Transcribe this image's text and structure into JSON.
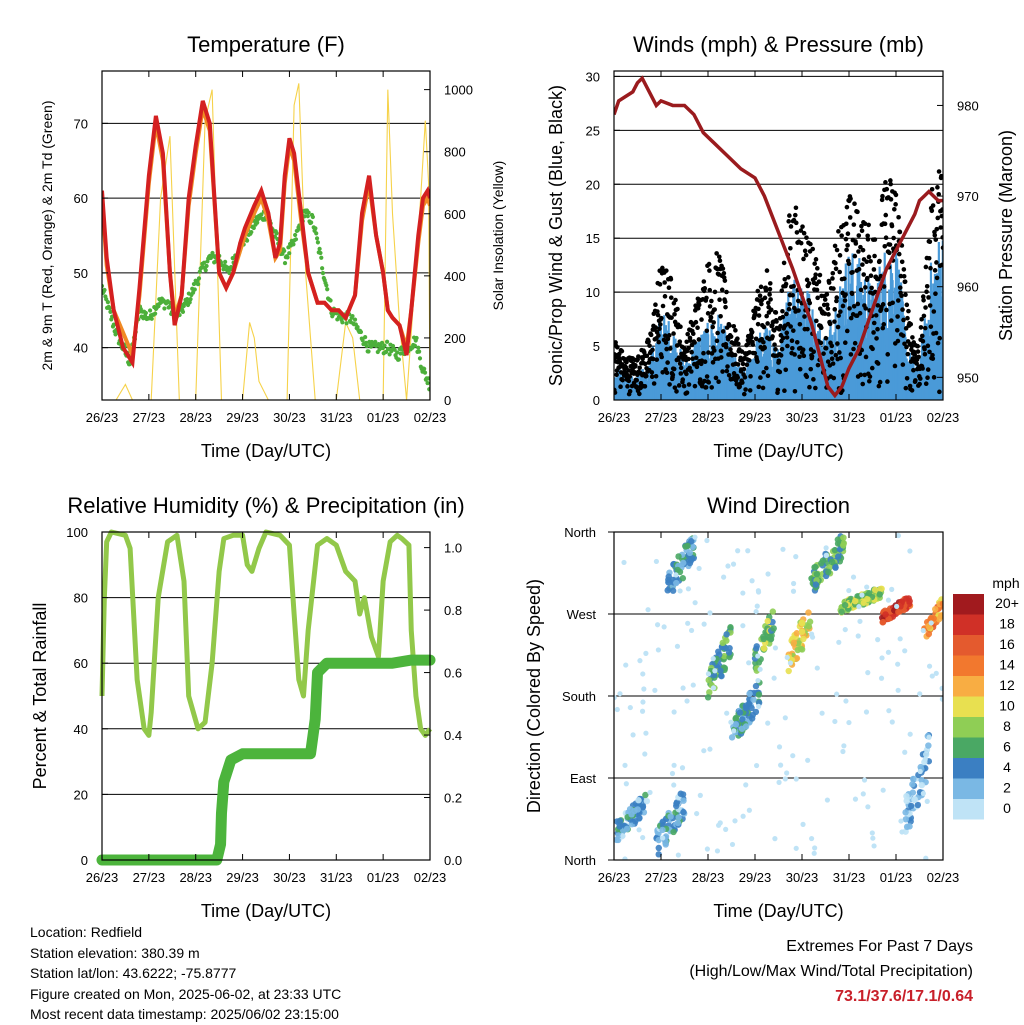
{
  "colors": {
    "temp_red": "#d42020",
    "temp_orange": "#f08a24",
    "dew_green": "#4caf3a",
    "solar_yellow": "#f6d24a",
    "wind_blue": "#4a9ad8",
    "gust_black": "#000000",
    "pressure_maroon": "#9a1b1e",
    "rh_lightgreen": "#92c84a",
    "precip_green": "#4cb43c"
  },
  "footer": {
    "location": "Location: Redfield",
    "elevation": "Station elevation: 380.39 m",
    "latlon": "Station lat/lon: 43.6222; -75.8777",
    "created": "Figure created on Mon, 2025-06-02, at 23:33 UTC",
    "recent": "Most recent data timestamp: 2025/06/02 23:15:00"
  },
  "extremes": {
    "title": "Extremes For Past 7 Days",
    "subtitle": "(High/Low/Max Wind/Total Precipitation)",
    "values": "73.1/37.6/17.1/0.64"
  },
  "chart_data": [
    {
      "type": "line",
      "title": "Temperature (F)",
      "xlabel": "Time (Day/UTC)",
      "ylabel": "2m & 9m T (Red, Orange) & 2m Td (Green)",
      "y2label": "Solar Insolation (Yellow)",
      "x_ticks": [
        "26/23",
        "27/23",
        "28/23",
        "29/23",
        "30/23",
        "31/23",
        "01/23",
        "02/23"
      ],
      "ylim": [
        33,
        77
      ],
      "y_ticks": [
        40,
        50,
        60,
        70
      ],
      "y2lim": [
        0,
        1060
      ],
      "y2_ticks": [
        0,
        200,
        400,
        600,
        800,
        1000
      ],
      "grid": "horizontal",
      "series": [
        {
          "name": "2m T",
          "axis": "left",
          "x": [
            0,
            0.1,
            0.25,
            0.45,
            0.65,
            0.8,
            1.0,
            1.15,
            1.3,
            1.45,
            1.55,
            1.7,
            1.85,
            2.0,
            2.15,
            2.3,
            2.5,
            2.65,
            2.8,
            2.95,
            3.05,
            3.25,
            3.4,
            3.55,
            3.7,
            3.8,
            3.9,
            4.0,
            4.1,
            4.25,
            4.4,
            4.6,
            4.75,
            4.9,
            5.05,
            5.2,
            5.4,
            5.55,
            5.7,
            5.85,
            6.0,
            6.1,
            6.2,
            6.35,
            6.5,
            6.6,
            6.75,
            6.85,
            6.95,
            7.0
          ],
          "y": [
            61,
            52,
            45,
            40,
            38,
            48,
            63,
            71,
            66,
            50,
            43,
            47,
            60,
            67,
            73,
            70,
            50,
            48,
            50,
            54,
            56,
            59,
            61,
            58,
            52,
            54,
            63,
            68,
            66,
            58,
            50,
            46,
            46,
            45,
            45,
            44,
            47,
            58,
            63,
            55,
            50,
            45,
            44,
            43,
            39,
            45,
            55,
            60,
            61,
            60
          ]
        },
        {
          "name": "9m T",
          "axis": "left",
          "x": [
            0,
            0.1,
            0.25,
            0.45,
            0.65,
            0.8,
            1.0,
            1.15,
            1.3,
            1.45,
            1.55,
            1.7,
            1.85,
            2.0,
            2.15,
            2.3,
            2.5,
            2.65,
            2.8,
            2.95,
            3.05,
            3.25,
            3.4,
            3.55,
            3.7,
            3.8,
            3.9,
            4.0,
            4.1,
            4.25,
            4.4,
            4.6,
            4.75,
            4.9,
            5.05,
            5.2,
            5.4,
            5.55,
            5.7,
            5.85,
            6.0,
            6.1,
            6.2,
            6.35,
            6.5,
            6.6,
            6.75,
            6.85,
            6.95,
            7.0
          ],
          "y": [
            60,
            51,
            45,
            42,
            39,
            47,
            62,
            70,
            65,
            50,
            44,
            47,
            59,
            66,
            72,
            69,
            50,
            48,
            50,
            53,
            55,
            58,
            60,
            57,
            52,
            53,
            62,
            67,
            65,
            57,
            50,
            46,
            46,
            45,
            45,
            44,
            47,
            57,
            62,
            55,
            50,
            45,
            44,
            43,
            40,
            45,
            54,
            59,
            60,
            59
          ]
        },
        {
          "name": "2m Td",
          "axis": "left",
          "x": [
            0,
            0.15,
            0.3,
            0.45,
            0.6,
            0.8,
            1.0,
            1.2,
            1.4,
            1.55,
            1.7,
            1.9,
            2.1,
            2.3,
            2.5,
            2.7,
            2.9,
            3.1,
            3.3,
            3.5,
            3.7,
            3.9,
            4.1,
            4.3,
            4.5,
            4.7,
            4.9,
            5.1,
            5.3,
            5.5,
            5.7,
            5.9,
            6.1,
            6.3,
            6.5,
            6.7,
            6.85,
            7.0
          ],
          "y": [
            48,
            45,
            42,
            40,
            38,
            45,
            44,
            46,
            46,
            44,
            45,
            47,
            50,
            52,
            52,
            50,
            53,
            55,
            57,
            58,
            55,
            52,
            54,
            58,
            57,
            51,
            45,
            44,
            44,
            42,
            40,
            40,
            40,
            39,
            40,
            41,
            37,
            35
          ]
        },
        {
          "name": "Solar Insolation",
          "axis": "right",
          "x": [
            0,
            0.1,
            0.3,
            0.5,
            0.65,
            1.05,
            1.25,
            1.45,
            1.65,
            2.0,
            2.2,
            2.35,
            2.55,
            3.0,
            3.15,
            3.25,
            3.35,
            3.55,
            3.95,
            4.1,
            4.2,
            4.35,
            4.55,
            5.0,
            5.2,
            5.35,
            5.5,
            6.0,
            6.1,
            6.2,
            6.35,
            6.5,
            6.8,
            6.9,
            6.97,
            7.0
          ],
          "y": [
            0,
            0,
            0,
            50,
            0,
            0,
            650,
            850,
            0,
            0,
            900,
            1000,
            0,
            0,
            250,
            200,
            60,
            0,
            0,
            950,
            1020,
            400,
            0,
            0,
            250,
            200,
            0,
            0,
            1000,
            600,
            250,
            0,
            650,
            900,
            700,
            0
          ]
        }
      ]
    },
    {
      "type": "scatter",
      "title": "Winds (mph) & Pressure (mb)",
      "xlabel": "Time (Day/UTC)",
      "ylabel": "Sonic/Prop Wind & Gust (Blue, Black)",
      "y2label": "Station Pressure (Maroon)",
      "x_ticks": [
        "26/23",
        "27/23",
        "28/23",
        "29/23",
        "30/23",
        "31/23",
        "01/23",
        "02/23"
      ],
      "ylim": [
        0,
        30.5
      ],
      "y_ticks": [
        0,
        5,
        10,
        15,
        20,
        25,
        30
      ],
      "y2lim": [
        947.5,
        983.8
      ],
      "y2_ticks": [
        950,
        960,
        970,
        980
      ],
      "grid": "horizontal",
      "wind_envelope": {
        "x": [
          0,
          0.25,
          0.5,
          0.75,
          1.0,
          1.25,
          1.5,
          1.75,
          2.0,
          2.25,
          2.5,
          2.75,
          3.0,
          3.25,
          3.5,
          3.75,
          4.0,
          4.25,
          4.5,
          4.75,
          5.0,
          5.25,
          5.5,
          5.75,
          6.0,
          6.25,
          6.5,
          6.75,
          7.0
        ],
        "sustained": [
          3,
          2,
          2,
          3,
          7,
          6,
          3,
          5,
          6,
          7,
          4,
          2,
          5,
          6,
          4,
          10,
          11,
          7,
          5,
          9,
          12,
          11,
          9,
          12,
          13,
          4,
          3,
          11,
          14
        ],
        "gust": [
          6,
          4,
          4,
          6,
          14,
          12,
          5,
          10,
          14,
          15,
          8,
          4,
          10,
          13,
          8,
          20,
          19,
          15,
          10,
          17,
          21,
          19,
          17,
          22,
          24,
          9,
          5,
          21,
          25
        ]
      },
      "series": [
        {
          "name": "Station Pressure",
          "axis": "right",
          "x": [
            0,
            0.1,
            0.25,
            0.4,
            0.5,
            0.6,
            0.75,
            0.9,
            1.0,
            1.25,
            1.5,
            1.7,
            1.9,
            2.1,
            2.4,
            2.7,
            3.0,
            3.2,
            3.5,
            3.8,
            4.0,
            4.2,
            4.4,
            4.55,
            4.7,
            4.85,
            5.0,
            5.2,
            5.4,
            5.6,
            5.8,
            6.0,
            6.2,
            6.4,
            6.5,
            6.6,
            6.7,
            6.8,
            6.9,
            7.0
          ],
          "y": [
            979,
            980.5,
            981,
            981.5,
            982.5,
            983,
            981.5,
            980,
            980.5,
            980,
            980,
            979,
            977,
            976,
            974.5,
            973,
            972,
            970,
            966,
            962,
            959,
            956,
            952,
            949,
            948,
            949,
            951,
            953,
            956,
            959,
            962,
            964,
            966,
            968,
            969.5,
            970,
            970.5,
            970,
            969.5,
            969.5
          ]
        }
      ]
    },
    {
      "type": "line",
      "title": "Relative Humidity (%) & Precipitation (in)",
      "xlabel": "Time (Day/UTC)",
      "ylabel": "Percent & Total Rainfall",
      "x_ticks": [
        "26/23",
        "27/23",
        "28/23",
        "29/23",
        "30/23",
        "31/23",
        "01/23",
        "02/23"
      ],
      "ylim": [
        0,
        100
      ],
      "y_ticks": [
        0,
        20,
        40,
        60,
        80,
        100
      ],
      "y2lim": [
        0,
        1.05
      ],
      "y2_ticks": [
        0.0,
        0.2,
        0.4,
        0.6,
        0.8,
        1.0
      ],
      "grid": "horizontal",
      "series": [
        {
          "name": "Relative Humidity",
          "axis": "left",
          "x": [
            0,
            0.05,
            0.1,
            0.2,
            0.5,
            0.6,
            0.75,
            0.9,
            1.0,
            1.05,
            1.2,
            1.4,
            1.6,
            1.75,
            1.85,
            2.05,
            2.2,
            2.35,
            2.5,
            2.6,
            2.8,
            3.0,
            3.1,
            3.2,
            3.35,
            3.5,
            3.8,
            4.0,
            4.1,
            4.2,
            4.3,
            4.4,
            4.6,
            4.8,
            5.0,
            5.2,
            5.4,
            5.5,
            5.6,
            5.75,
            5.9,
            6.0,
            6.15,
            6.3,
            6.4,
            6.55,
            6.6,
            6.7,
            6.8,
            6.9,
            7.0
          ],
          "y": [
            50,
            80,
            97,
            100,
            99,
            95,
            55,
            40,
            38,
            45,
            80,
            97,
            99,
            85,
            50,
            40,
            42,
            60,
            88,
            98,
            99,
            99,
            90,
            88,
            95,
            100,
            99,
            96,
            75,
            55,
            50,
            70,
            96,
            98,
            96,
            88,
            85,
            75,
            80,
            68,
            62,
            85,
            97,
            99,
            98,
            96,
            70,
            50,
            40,
            38,
            40
          ]
        },
        {
          "name": "Total Precipitation",
          "axis": "right",
          "x": [
            0,
            2.45,
            2.53,
            2.55,
            2.6,
            2.75,
            3.0,
            3.5,
            4.0,
            4.45,
            4.55,
            4.6,
            4.8,
            5.2,
            5.8,
            6.2,
            6.6,
            7.0
          ],
          "y": [
            0.0,
            0.0,
            0.05,
            0.15,
            0.25,
            0.32,
            0.34,
            0.34,
            0.34,
            0.34,
            0.45,
            0.6,
            0.63,
            0.63,
            0.63,
            0.63,
            0.64,
            0.64
          ]
        }
      ]
    },
    {
      "type": "scatter",
      "title": "Wind Direction",
      "xlabel": "Time (Day/UTC)",
      "ylabel": "Direction (Colored By Speed)",
      "x_ticks": [
        "26/23",
        "27/23",
        "28/23",
        "29/23",
        "30/23",
        "31/23",
        "01/23",
        "02/23"
      ],
      "y_ticks": [
        "North",
        "East",
        "South",
        "West",
        "North"
      ],
      "y_tick_degrees": [
        0,
        90,
        180,
        270,
        360
      ],
      "ylim": [
        0,
        360
      ],
      "grid": "horizontal",
      "colorbar": {
        "title": "mph",
        "labels": [
          "20+",
          "18",
          "16",
          "14",
          "12",
          "10",
          "8",
          "6",
          "4",
          "2",
          "0"
        ],
        "colors": [
          "#a11a1e",
          "#d03027",
          "#e45a2e",
          "#f2782e",
          "#f8ad43",
          "#e8e050",
          "#8fce55",
          "#4aa864",
          "#3b7fc2",
          "#7ab8e4",
          "#bfe3f6"
        ]
      },
      "direction_clusters": [
        {
          "x": [
            0.05,
            0.7
          ],
          "dir": [
            20,
            75
          ],
          "speed": 3
        },
        {
          "x": [
            0.9,
            1.5
          ],
          "dir": [
            0,
            80
          ],
          "speed": 3
        },
        {
          "x": [
            1.1,
            1.7
          ],
          "dir": [
            280,
            360
          ],
          "speed": 4
        },
        {
          "x": [
            2.0,
            2.5
          ],
          "dir": [
            170,
            260
          ],
          "speed": 6
        },
        {
          "x": [
            2.5,
            3.1
          ],
          "dir": [
            120,
            200
          ],
          "speed": 4
        },
        {
          "x": [
            3.0,
            3.4
          ],
          "dir": [
            200,
            280
          ],
          "speed": 7
        },
        {
          "x": [
            3.7,
            4.2
          ],
          "dir": [
            200,
            285
          ],
          "speed": 10
        },
        {
          "x": [
            4.2,
            4.9
          ],
          "dir": [
            290,
            360
          ],
          "speed": 6
        },
        {
          "x": [
            4.8,
            5.7
          ],
          "dir": [
            270,
            300
          ],
          "speed": 8
        },
        {
          "x": [
            5.7,
            6.3
          ],
          "dir": [
            260,
            290
          ],
          "speed": 17
        },
        {
          "x": [
            6.6,
            7.0
          ],
          "dir": [
            240,
            290
          ],
          "speed": 13
        },
        {
          "x": [
            6.2,
            6.7
          ],
          "dir": [
            20,
            140
          ],
          "speed": 2
        }
      ]
    }
  ]
}
